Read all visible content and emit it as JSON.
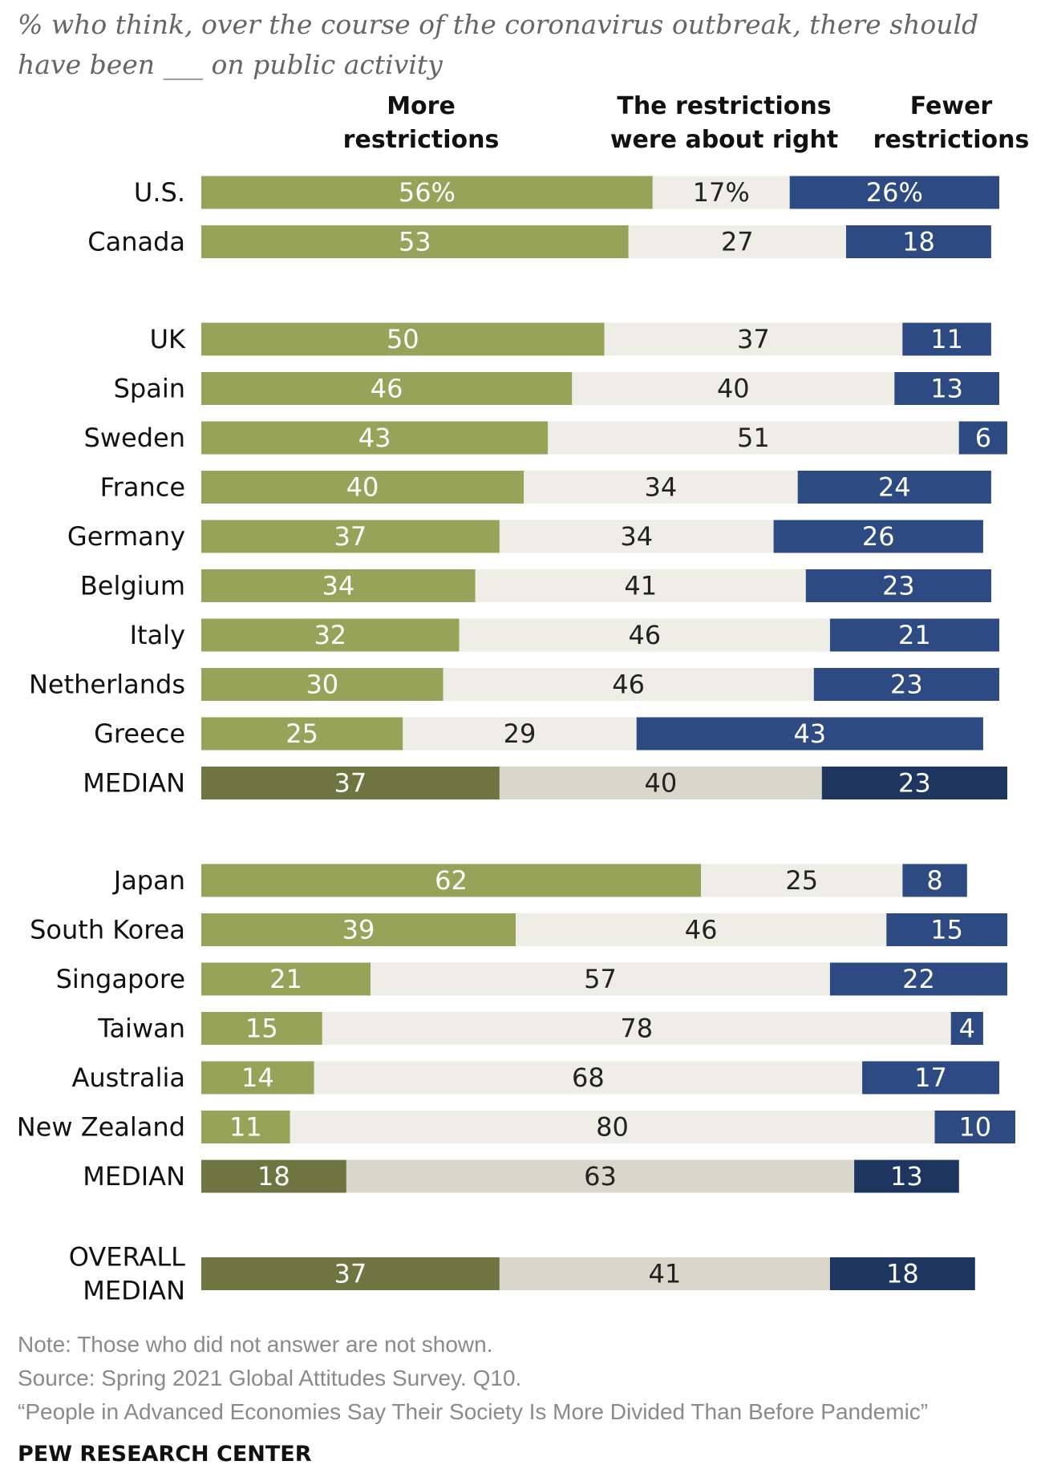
{
  "subtitle": "% who think, over the course of the coronavirus outbreak, there should have been ___ on public activity",
  "notes": {
    "note": "Note: Those who did not answer are not shown.",
    "source": "Source: Spring 2021 Global Attitudes Survey. Q10.",
    "report": "“People in Advanced Economies Say Their Society Is More Divided Than Before Pandemic”",
    "brand": "PEW RESEARCH CENTER"
  },
  "chart_data": {
    "type": "bar",
    "orientation": "horizontal-stacked",
    "unit": "%",
    "series": [
      {
        "key": "more",
        "name": "More restrictions",
        "name_lines": [
          "More",
          "restrictions"
        ]
      },
      {
        "key": "right",
        "name": "The restrictions were about right",
        "name_lines": [
          "The restrictions",
          "were about right"
        ]
      },
      {
        "key": "fewer",
        "name": "Fewer restrictions",
        "name_lines": [
          "Fewer",
          "restrictions"
        ]
      }
    ],
    "colors": {
      "more": "#98a35a",
      "right": "#eeede6",
      "fewer": "#2d4b82",
      "more_median": "#6e7540",
      "right_median": "#d9d6cc",
      "fewer_median": "#1e3560",
      "label_on_dark": "#ffffff",
      "label_on_light": "#222222"
    },
    "rows": [
      {
        "label": "U.S.",
        "values": [
          56,
          17,
          26
        ],
        "display": [
          "56%",
          "17%",
          "26%"
        ],
        "group": 0
      },
      {
        "label": "Canada",
        "values": [
          53,
          27,
          18
        ],
        "display": [
          "53",
          "27",
          "18"
        ],
        "group": 0
      },
      {
        "label": "UK",
        "values": [
          50,
          37,
          11
        ],
        "display": [
          "50",
          "37",
          "11"
        ],
        "group": 1
      },
      {
        "label": "Spain",
        "values": [
          46,
          40,
          13
        ],
        "display": [
          "46",
          "40",
          "13"
        ],
        "group": 1
      },
      {
        "label": "Sweden",
        "values": [
          43,
          51,
          6
        ],
        "display": [
          "43",
          "51",
          "6"
        ],
        "group": 1
      },
      {
        "label": "France",
        "values": [
          40,
          34,
          24
        ],
        "display": [
          "40",
          "34",
          "24"
        ],
        "group": 1
      },
      {
        "label": "Germany",
        "values": [
          37,
          34,
          26
        ],
        "display": [
          "37",
          "34",
          "26"
        ],
        "group": 1
      },
      {
        "label": "Belgium",
        "values": [
          34,
          41,
          23
        ],
        "display": [
          "34",
          "41",
          "23"
        ],
        "group": 1
      },
      {
        "label": "Italy",
        "values": [
          32,
          46,
          21
        ],
        "display": [
          "32",
          "46",
          "21"
        ],
        "group": 1
      },
      {
        "label": "Netherlands",
        "values": [
          30,
          46,
          23
        ],
        "display": [
          "30",
          "46",
          "23"
        ],
        "group": 1
      },
      {
        "label": "Greece",
        "values": [
          25,
          29,
          43
        ],
        "display": [
          "25",
          "29",
          "43"
        ],
        "group": 1
      },
      {
        "label": "MEDIAN",
        "values": [
          37,
          40,
          23
        ],
        "display": [
          "37",
          "40",
          "23"
        ],
        "group": 1,
        "median": true
      },
      {
        "label": "Japan",
        "values": [
          62,
          25,
          8
        ],
        "display": [
          "62",
          "25",
          "8"
        ],
        "group": 2
      },
      {
        "label": "South Korea",
        "values": [
          39,
          46,
          15
        ],
        "display": [
          "39",
          "46",
          "15"
        ],
        "group": 2
      },
      {
        "label": "Singapore",
        "values": [
          21,
          57,
          22
        ],
        "display": [
          "21",
          "57",
          "22"
        ],
        "group": 2
      },
      {
        "label": "Taiwan",
        "values": [
          15,
          78,
          4
        ],
        "display": [
          "15",
          "78",
          "4"
        ],
        "group": 2
      },
      {
        "label": "Australia",
        "values": [
          14,
          68,
          17
        ],
        "display": [
          "14",
          "68",
          "17"
        ],
        "group": 2
      },
      {
        "label": "New Zealand",
        "values": [
          11,
          80,
          10
        ],
        "display": [
          "11",
          "80",
          "10"
        ],
        "group": 2
      },
      {
        "label": "MEDIAN",
        "values": [
          18,
          63,
          13
        ],
        "display": [
          "18",
          "63",
          "13"
        ],
        "group": 2,
        "median": true
      },
      {
        "label": "OVERALL MEDIAN",
        "label_lines": [
          "OVERALL",
          "MEDIAN"
        ],
        "values": [
          37,
          41,
          18
        ],
        "display": [
          "37",
          "41",
          "18"
        ],
        "group": 3,
        "median": true
      }
    ],
    "xlim": [
      0,
      100
    ],
    "grid": false,
    "legend": "column headers above bars"
  }
}
